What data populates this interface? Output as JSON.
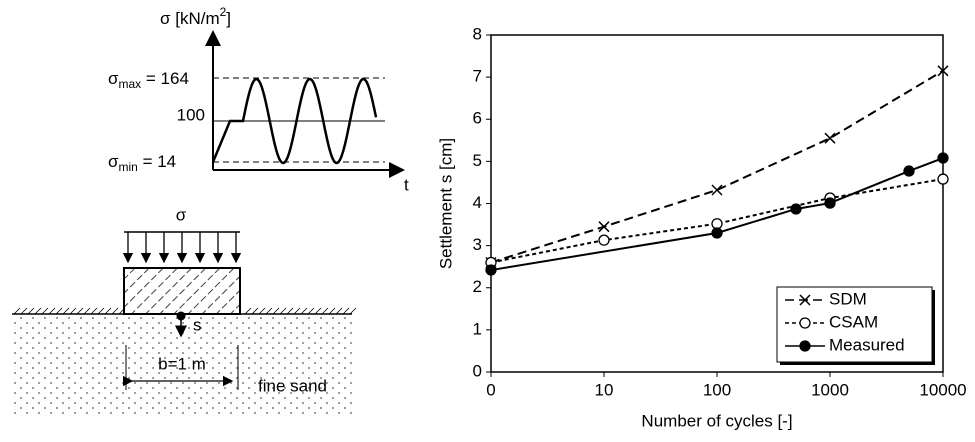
{
  "diagram": {
    "stress_axis": {
      "text": "σ [kN/m",
      "sup": "2",
      "close": "]"
    },
    "sigma_max": {
      "symbol": "σ",
      "sub": "max",
      "text": " = 164"
    },
    "mean_label": "100",
    "sigma_min": {
      "symbol": "σ",
      "sub": "min",
      "text": " = 14"
    },
    "time_axis": "t",
    "load_label": "σ",
    "settlement_label": "s",
    "width_label": "b=1 m",
    "soil_label": "fine sand"
  },
  "chart_data": {
    "type": "line",
    "xlabel": "Number of cycles [-]",
    "ylabel": "Settlement s [cm]",
    "xscale": "log",
    "xlim": [
      0,
      10000
    ],
    "xticks": [
      0,
      10,
      100,
      1000,
      10000
    ],
    "ylim": [
      0,
      8
    ],
    "yticks": [
      0,
      1,
      2,
      3,
      4,
      5,
      6,
      7,
      8
    ],
    "legend": "lower right",
    "series": [
      {
        "name": "SDM",
        "color": "#000000",
        "line_style": "dashed",
        "marker": "x",
        "x": [
          0,
          10,
          100,
          1000,
          10000
        ],
        "values": [
          2.6,
          3.45,
          4.32,
          5.55,
          7.15
        ]
      },
      {
        "name": "CSAM",
        "color": "#000000",
        "line_style": "dotted",
        "marker": "open-circle",
        "x": [
          0,
          10,
          100,
          1000,
          10000
        ],
        "values": [
          2.6,
          3.13,
          3.52,
          4.13,
          4.58
        ]
      },
      {
        "name": "Measured",
        "color": "#000000",
        "line_style": "solid",
        "marker": "filled-circle",
        "x": [
          0,
          100,
          500,
          1000,
          5000,
          10000
        ],
        "values": [
          2.42,
          3.3,
          3.87,
          4.01,
          4.77,
          5.08
        ]
      }
    ]
  }
}
